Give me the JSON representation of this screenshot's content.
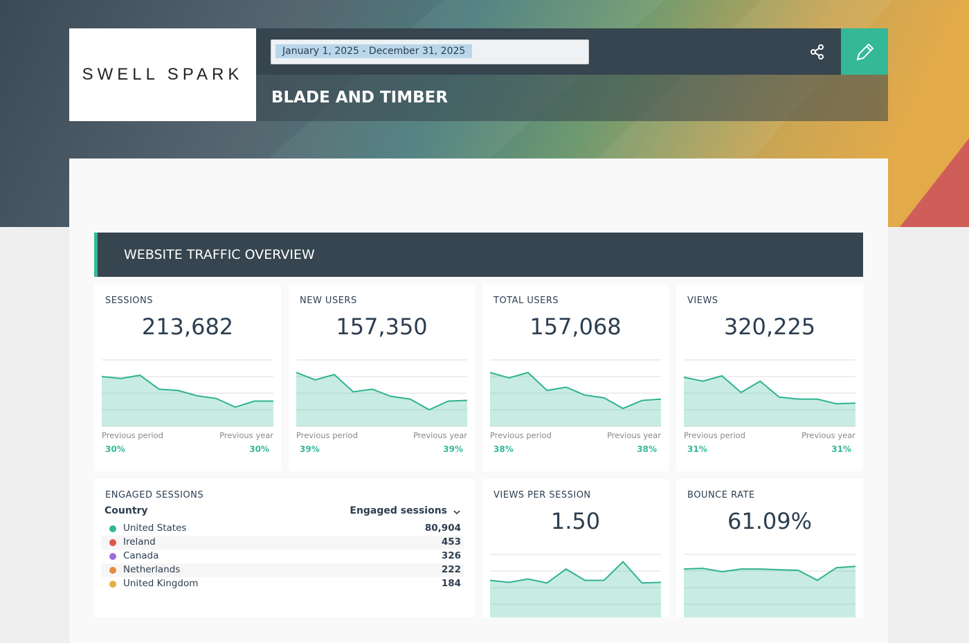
{
  "header": {
    "logo": "SWELL SPARK",
    "date_range": "January 1, 2025 - December 31, 2025",
    "title": "BLADE AND TIMBER"
  },
  "section": {
    "title": "WEBSITE TRAFFIC OVERVIEW"
  },
  "spark_scale": {
    "ylim": [
      0,
      100
    ],
    "yticks": [
      0,
      25,
      50,
      75,
      100
    ]
  },
  "kpis": [
    {
      "label": "SESSIONS",
      "value": "213,682",
      "sparkline": [
        75,
        72,
        77,
        56,
        54,
        46,
        42,
        29,
        38,
        38
      ],
      "prev_period_label": "Previous period",
      "prev_year_label": "Previous year",
      "prev_period": "30%",
      "prev_year": "30%"
    },
    {
      "label": "NEW USERS",
      "value": "157,350",
      "sparkline": [
        81,
        70,
        78,
        52,
        56,
        45,
        41,
        25,
        38,
        39
      ],
      "prev_period_label": "Previous period",
      "prev_year_label": "Previous year",
      "prev_period": "39%",
      "prev_year": "39%"
    },
    {
      "label": "TOTAL USERS",
      "value": "157,068",
      "sparkline": [
        81,
        73,
        81,
        54,
        59,
        47,
        43,
        27,
        39,
        41
      ],
      "prev_period_label": "Previous period",
      "prev_year_label": "Previous year",
      "prev_period": "38%",
      "prev_year": "38%"
    },
    {
      "label": "VIEWS",
      "value": "320,225",
      "sparkline": [
        74,
        68,
        76,
        51,
        68,
        44,
        41,
        41,
        34,
        35
      ],
      "prev_period_label": "Previous period",
      "prev_year_label": "Previous year",
      "prev_period": "31%",
      "prev_year": "31%"
    },
    {
      "label": "VIEWS PER SESSION",
      "value": "1.50",
      "sparkline": [
        61,
        58,
        63,
        57,
        78,
        61,
        61,
        89,
        57,
        58
      ]
    },
    {
      "label": "BOUNCE RATE",
      "value": "61.09%",
      "sparkline": [
        78,
        79,
        74,
        78,
        78,
        77,
        76,
        61,
        80,
        82
      ]
    }
  ],
  "engaged": {
    "label": "ENGAGED SESSIONS",
    "columns": [
      "Country",
      "Engaged sessions"
    ],
    "rows": [
      {
        "country": "United States",
        "value": "80,904",
        "color": "#2fb896"
      },
      {
        "country": "Ireland",
        "value": "453",
        "color": "#e0574a"
      },
      {
        "country": "Canada",
        "value": "326",
        "color": "#9b6ddb"
      },
      {
        "country": "Netherlands",
        "value": "222",
        "color": "#e88a3c"
      },
      {
        "country": "United Kingdom",
        "value": "184",
        "color": "#e0b040"
      }
    ]
  }
}
